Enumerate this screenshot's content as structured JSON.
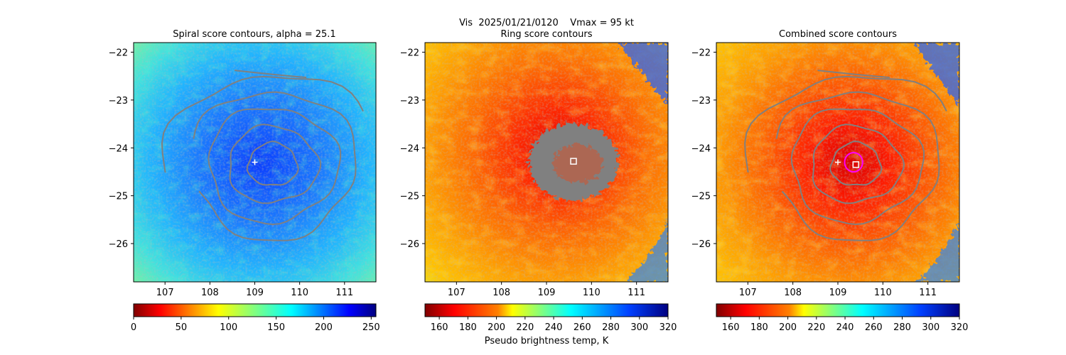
{
  "figure": {
    "suptitle": "Vis  2025/01/21/0120    Vmax = 95 kt",
    "cbar_label": "Pseudo brightness temp, K"
  },
  "chart_data": [
    {
      "type": "heatmap",
      "title": "Spiral score contours, alpha = 25.1",
      "xlim": [
        106.3,
        111.7
      ],
      "ylim": [
        -26.8,
        -21.8
      ],
      "xticks": [
        107,
        108,
        109,
        110,
        111
      ],
      "xtick_labels": [
        "107",
        "108",
        "109",
        "110",
        "111"
      ],
      "yticks": [
        -22,
        -23,
        -24,
        -25,
        -26
      ],
      "ytick_labels": [
        "−22",
        "−23",
        "−24",
        "−25",
        "−26"
      ],
      "colormap": "jet_r",
      "colorbar": {
        "range": [
          0,
          255
        ],
        "ticks": [
          0,
          50,
          100,
          150,
          200,
          250
        ],
        "tick_labels": [
          "0",
          "50",
          "100",
          "150",
          "200",
          "250"
        ]
      },
      "contour_center": [
        109.4,
        -24.35
      ],
      "contour_color": "#808080",
      "markers": [
        {
          "type": "plus",
          "lon": 109.0,
          "lat": -24.3,
          "color": "#ffffff"
        }
      ]
    },
    {
      "type": "heatmap",
      "title": "Ring score contours",
      "xlim": [
        106.3,
        111.7
      ],
      "ylim": [
        -26.8,
        -21.8
      ],
      "xticks": [
        107,
        108,
        109,
        110,
        111
      ],
      "xtick_labels": [
        "107",
        "108",
        "109",
        "110",
        "111"
      ],
      "yticks": [
        -22,
        -23,
        -24,
        -25,
        -26
      ],
      "ytick_labels": [
        "−22",
        "−23",
        "−24",
        "−25",
        "−26"
      ],
      "colormap": "jet_r",
      "colorbar": {
        "range": [
          150,
          320
        ],
        "ticks": [
          160,
          180,
          200,
          220,
          240,
          260,
          280,
          300,
          320
        ],
        "tick_labels": [
          "160",
          "180",
          "200",
          "220",
          "240",
          "260",
          "280",
          "300",
          "320"
        ]
      },
      "ring_region": {
        "lon": 109.6,
        "lat": -24.3,
        "rx_deg": 1.0,
        "ry_deg": 0.8,
        "color": "#808080"
      },
      "markers": [
        {
          "type": "square",
          "lon": 109.6,
          "lat": -24.28,
          "color": "#ffffff"
        }
      ]
    },
    {
      "type": "heatmap",
      "title": "Combined score contours",
      "xlim": [
        106.3,
        111.7
      ],
      "ylim": [
        -26.8,
        -21.8
      ],
      "xticks": [
        107,
        108,
        109,
        110,
        111
      ],
      "xtick_labels": [
        "107",
        "108",
        "109",
        "110",
        "111"
      ],
      "yticks": [
        -22,
        -23,
        -24,
        -25,
        -26
      ],
      "ytick_labels": [
        "−22",
        "−23",
        "−24",
        "−25",
        "−26"
      ],
      "colormap": "jet_r",
      "colorbar": {
        "range": [
          150,
          320
        ],
        "ticks": [
          160,
          180,
          200,
          220,
          240,
          260,
          280,
          300,
          320
        ],
        "tick_labels": [
          "160",
          "180",
          "200",
          "220",
          "240",
          "260",
          "280",
          "300",
          "320"
        ]
      },
      "contour_center": [
        109.4,
        -24.35
      ],
      "contour_color": "#808080",
      "markers": [
        {
          "type": "plus",
          "lon": 109.0,
          "lat": -24.3,
          "color": "#ffffff"
        },
        {
          "type": "square",
          "lon": 109.4,
          "lat": -24.35,
          "color": "#ffffff"
        },
        {
          "type": "circle",
          "lon": 109.35,
          "lat": -24.3,
          "radius_deg": 0.2,
          "color": "#ff00ff"
        }
      ]
    }
  ]
}
